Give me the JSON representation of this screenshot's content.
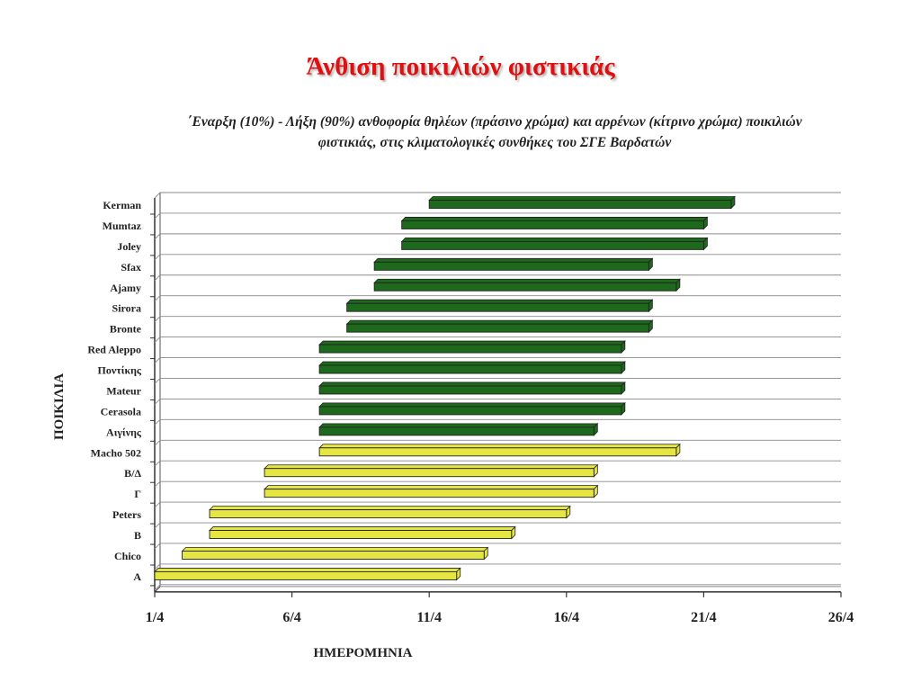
{
  "slide": {
    "title": "Άνθιση ποικιλιών φιστικιάς"
  },
  "chart_data": {
    "type": "bar",
    "orientation": "horizontal",
    "title": "΄Εναρξη (10%) - Λήξη (90%) ανθοφορία θηλέων (πράσινο χρώμα) και αρρένων (κίτρινο χρώμα) ποικιλιών φιστικιάς, στις κλιματολογικές συνθήκες του ΣΓΕ Βαρδατών",
    "xlabel": "ΗΜΕΡΟΜΗΝΙΑ",
    "ylabel": "ΠΟΙΚΙΛΙΑ",
    "x_ticks": [
      "1/4",
      "6/4",
      "11/4",
      "16/4",
      "21/4",
      "26/4"
    ],
    "xlim": [
      1,
      26
    ],
    "grid": true,
    "colors": {
      "female": "#1d6a1d",
      "male": "#e6e642"
    },
    "bars": [
      {
        "category": "Kerman",
        "start": 11,
        "end": 22,
        "group": "female"
      },
      {
        "category": "Mumtaz",
        "start": 10,
        "end": 21,
        "group": "female"
      },
      {
        "category": "Joley",
        "start": 10,
        "end": 21,
        "group": "female"
      },
      {
        "category": "Sfax",
        "start": 9,
        "end": 19,
        "group": "female"
      },
      {
        "category": "Ajamy",
        "start": 9,
        "end": 20,
        "group": "female"
      },
      {
        "category": "Sirora",
        "start": 8,
        "end": 19,
        "group": "female"
      },
      {
        "category": "Bronte",
        "start": 8,
        "end": 19,
        "group": "female"
      },
      {
        "category": "Red Aleppo",
        "start": 7,
        "end": 18,
        "group": "female"
      },
      {
        "category": "Ποντίκης",
        "start": 7,
        "end": 18,
        "group": "female"
      },
      {
        "category": "Mateur",
        "start": 7,
        "end": 18,
        "group": "female"
      },
      {
        "category": "Cerasola",
        "start": 7,
        "end": 18,
        "group": "female"
      },
      {
        "category": "Αιγίνης",
        "start": 7,
        "end": 17,
        "group": "female"
      },
      {
        "category": "Macho 502",
        "start": 7,
        "end": 20,
        "group": "male"
      },
      {
        "category": "Β/Δ",
        "start": 5,
        "end": 17,
        "group": "male"
      },
      {
        "category": "Γ",
        "start": 5,
        "end": 17,
        "group": "male"
      },
      {
        "category": "Peters",
        "start": 3,
        "end": 16,
        "group": "male"
      },
      {
        "category": "Β",
        "start": 3,
        "end": 14,
        "group": "male"
      },
      {
        "category": "Chico",
        "start": 2,
        "end": 13,
        "group": "male"
      },
      {
        "category": "Α",
        "start": 1,
        "end": 12,
        "group": "male"
      }
    ]
  }
}
